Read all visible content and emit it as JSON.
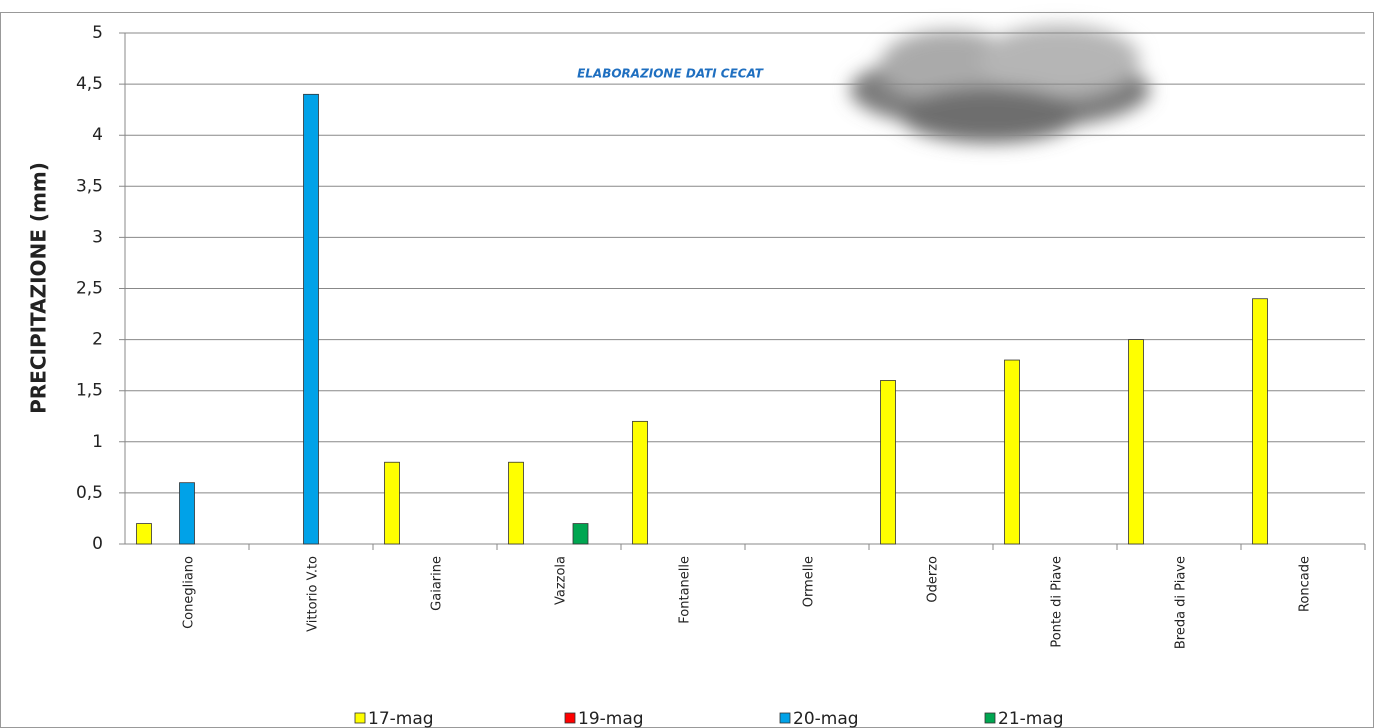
{
  "chart_data": {
    "type": "bar",
    "ylabel": "PRECIPITAZIONE (mm)",
    "annotation": "ELABORAZIONE DATI CECAT",
    "categories": [
      "Conegliano",
      "Vittorio V.to",
      "Gaiarine",
      "Vazzola",
      "Fontanelle",
      "Ormelle",
      "Oderzo",
      "Ponte di Piave",
      "Breda di Piave",
      "Roncade"
    ],
    "series": [
      {
        "name": "17-mag",
        "color": "#ffff00",
        "values": [
          0.2,
          0,
          0.8,
          0.8,
          1.2,
          0,
          1.6,
          1.8,
          2.0,
          2.4
        ]
      },
      {
        "name": "19-mag",
        "color": "#ff0000",
        "values": [
          0,
          0,
          0,
          0,
          0,
          0,
          0,
          0,
          0,
          0
        ]
      },
      {
        "name": "20-mag",
        "color": "#00a2e8",
        "values": [
          0.6,
          4.4,
          0,
          0,
          0,
          0,
          0,
          0,
          0,
          0
        ]
      },
      {
        "name": "21-mag",
        "color": "#00a651",
        "values": [
          0,
          0,
          0,
          0.2,
          0,
          0,
          0,
          0,
          0,
          0
        ]
      }
    ],
    "ylim": [
      0,
      5
    ],
    "yticks": [
      0,
      {
        "value": 0.5,
        "label": "0,5"
      },
      1,
      {
        "value": 1.5,
        "label": "1,5"
      },
      2,
      {
        "value": 2.5,
        "label": "2,5"
      },
      3,
      {
        "value": 3.5,
        "label": "3,5"
      },
      4,
      {
        "value": 4.5,
        "label": "4,5"
      },
      5
    ],
    "grid": true,
    "legend": "bottom"
  }
}
